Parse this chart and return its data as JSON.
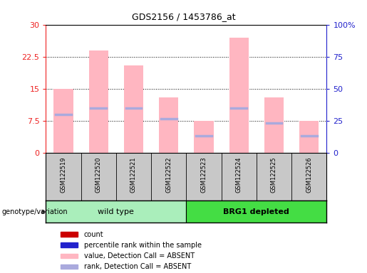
{
  "title": "GDS2156 / 1453786_at",
  "samples": [
    "GSM122519",
    "GSM122520",
    "GSM122521",
    "GSM122522",
    "GSM122523",
    "GSM122524",
    "GSM122525",
    "GSM122526"
  ],
  "pink_bar_heights": [
    15.0,
    24.0,
    20.5,
    13.0,
    7.5,
    27.0,
    13.0,
    7.5
  ],
  "blue_marker_positions": [
    9.0,
    10.5,
    10.5,
    8.0,
    4.0,
    10.5,
    7.0,
    4.0
  ],
  "ylim_left": [
    0,
    30
  ],
  "ylim_right": [
    0,
    100
  ],
  "yticks_left": [
    0,
    7.5,
    15,
    22.5,
    30
  ],
  "yticks_right": [
    0,
    25,
    50,
    75,
    100
  ],
  "ytick_labels_left": [
    "0",
    "7.5",
    "15",
    "22.5",
    "30"
  ],
  "ytick_labels_right": [
    "0",
    "25",
    "50",
    "75",
    "100%"
  ],
  "pink_color": "#FFB6C1",
  "blue_color": "#AAAADD",
  "red_color": "#EE2222",
  "dark_blue_color": "#2222CC",
  "group1_color": "#AAEEBB",
  "group2_color": "#44DD44",
  "gray_bg": "#C8C8C8",
  "group_label": "genotype/variation",
  "legend_entries": [
    {
      "color": "#CC0000",
      "label": "count"
    },
    {
      "color": "#2222CC",
      "label": "percentile rank within the sample"
    },
    {
      "color": "#FFB6C1",
      "label": "value, Detection Call = ABSENT"
    },
    {
      "color": "#AAAADD",
      "label": "rank, Detection Call = ABSENT"
    }
  ]
}
